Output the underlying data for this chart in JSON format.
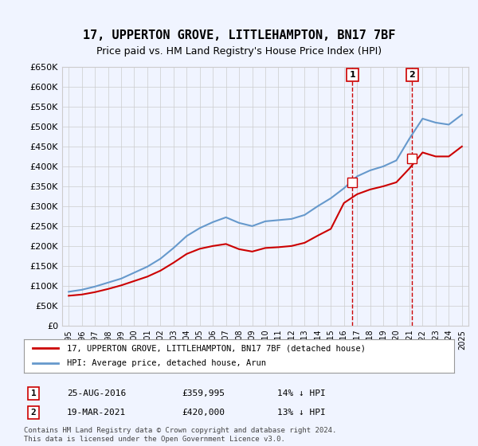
{
  "title": "17, UPPERTON GROVE, LITTLEHAMPTON, BN17 7BF",
  "subtitle": "Price paid vs. HM Land Registry's House Price Index (HPI)",
  "legend_line1": "17, UPPERTON GROVE, LITTLEHAMPTON, BN17 7BF (detached house)",
  "legend_line2": "HPI: Average price, detached house, Arun",
  "transaction1_label": "1",
  "transaction1_date": "25-AUG-2016",
  "transaction1_price": "£359,995",
  "transaction1_hpi": "14% ↓ HPI",
  "transaction1_year": 2016.65,
  "transaction1_value": 359995,
  "transaction2_label": "2",
  "transaction2_date": "19-MAR-2021",
  "transaction2_price": "£420,000",
  "transaction2_hpi": "13% ↓ HPI",
  "transaction2_year": 2021.21,
  "transaction2_value": 420000,
  "ylim": [
    0,
    650000
  ],
  "yticks": [
    0,
    50000,
    100000,
    150000,
    200000,
    250000,
    300000,
    350000,
    400000,
    450000,
    500000,
    550000,
    600000,
    650000
  ],
  "red_color": "#cc0000",
  "blue_color": "#6699cc",
  "background_color": "#f0f4ff",
  "plot_bg_color": "#f0f4ff",
  "grid_color": "#cccccc",
  "footnote": "Contains HM Land Registry data © Crown copyright and database right 2024.\nThis data is licensed under the Open Government Licence v3.0.",
  "hpi_years": [
    1995,
    1996,
    1997,
    1998,
    1999,
    2000,
    2001,
    2002,
    2003,
    2004,
    2005,
    2006,
    2007,
    2008,
    2009,
    2010,
    2011,
    2012,
    2013,
    2014,
    2015,
    2016,
    2017,
    2018,
    2019,
    2020,
    2021,
    2022,
    2023,
    2024,
    2025
  ],
  "hpi_values": [
    85000,
    90000,
    98000,
    108000,
    118000,
    133000,
    148000,
    168000,
    195000,
    225000,
    245000,
    260000,
    272000,
    258000,
    250000,
    262000,
    265000,
    268000,
    278000,
    300000,
    320000,
    345000,
    375000,
    390000,
    400000,
    415000,
    470000,
    520000,
    510000,
    505000,
    530000
  ],
  "red_years": [
    1995,
    1996,
    1997,
    1998,
    1999,
    2000,
    2001,
    2002,
    2003,
    2004,
    2005,
    2006,
    2007,
    2008,
    2009,
    2010,
    2011,
    2012,
    2013,
    2014,
    2015,
    2016,
    2017,
    2018,
    2019,
    2020,
    2021,
    2022,
    2023,
    2024,
    2025
  ],
  "red_values": [
    75000,
    78000,
    84000,
    92000,
    101000,
    112000,
    123000,
    138000,
    158000,
    180000,
    193000,
    200000,
    205000,
    192000,
    186000,
    195000,
    197000,
    200000,
    208000,
    226000,
    243000,
    308000,
    330000,
    342000,
    350000,
    360000,
    395000,
    435000,
    425000,
    425000,
    450000
  ]
}
